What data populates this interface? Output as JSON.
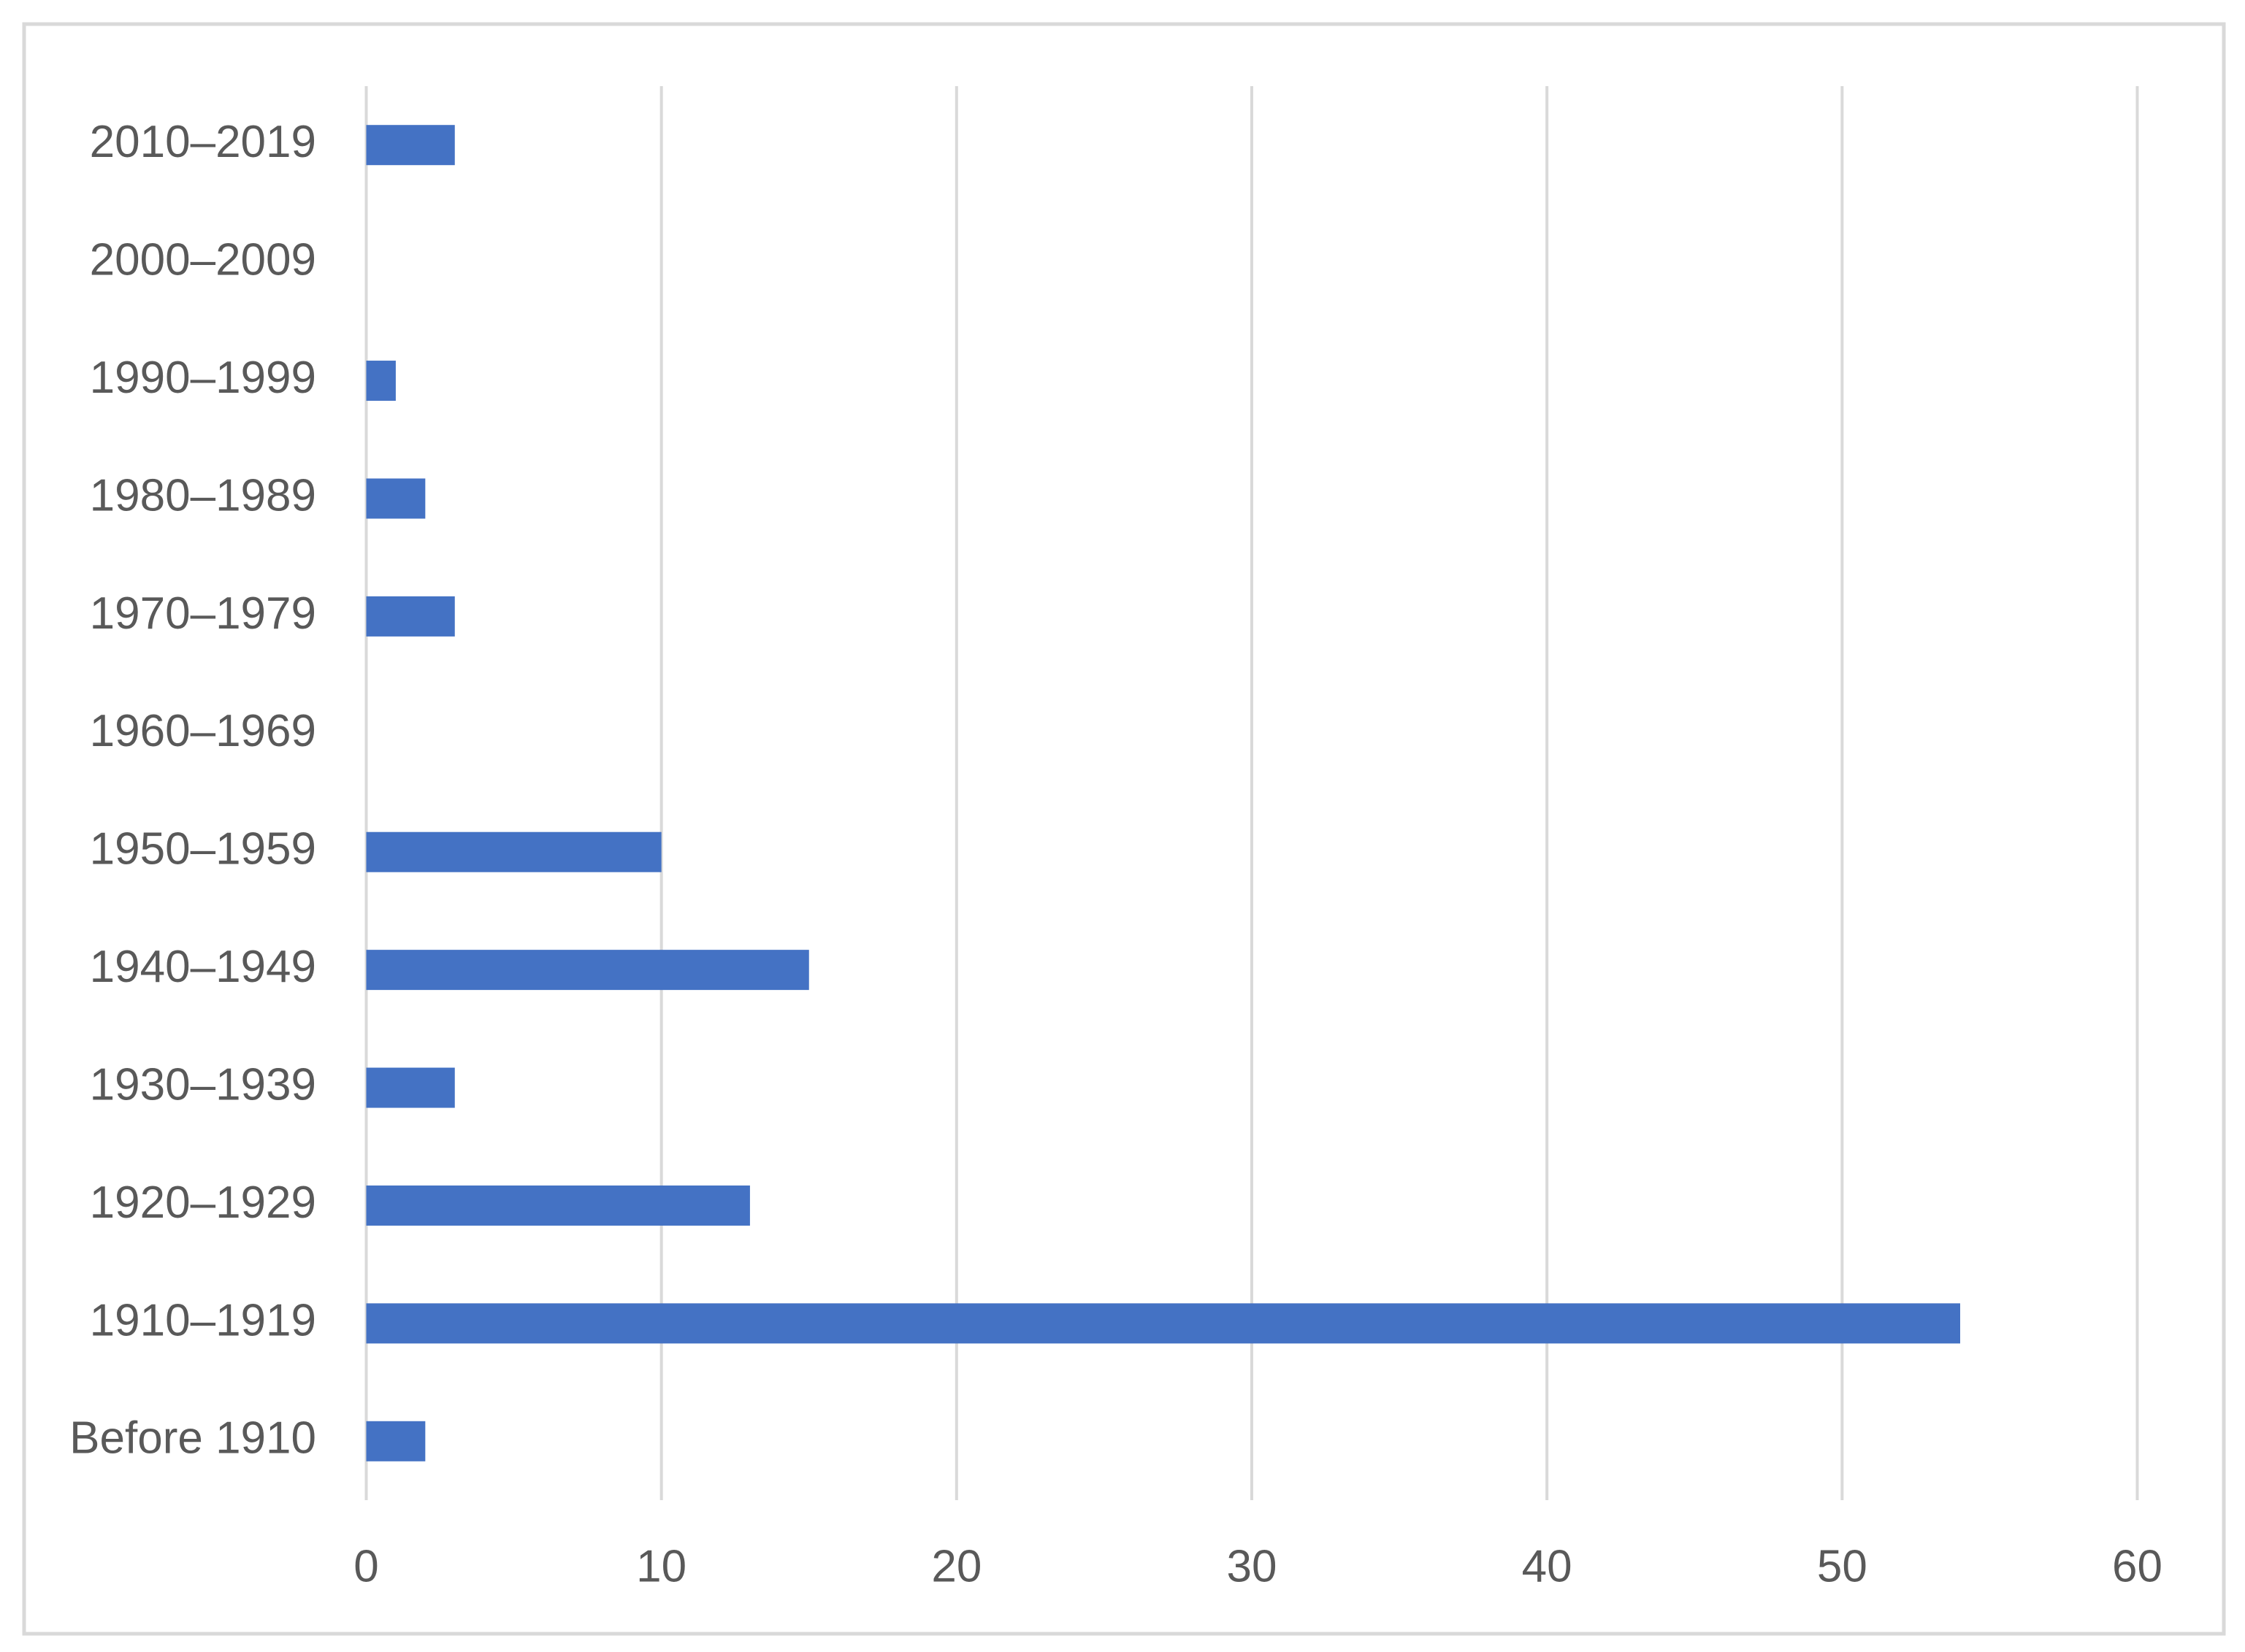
{
  "chart_data": {
    "type": "bar",
    "orientation": "horizontal",
    "categories": [
      "Before 1910",
      "1910–1919",
      "1920–1929",
      "1930–1939",
      "1940–1949",
      "1950–1959",
      "1960–1969",
      "1970–1979",
      "1980–1989",
      "1990–1999",
      "2000–2009",
      "2010–2019"
    ],
    "values": [
      2,
      54,
      13,
      3,
      15,
      10,
      0,
      3,
      2,
      1,
      0,
      3
    ],
    "color": "#4472c4",
    "xlim": [
      0,
      60
    ],
    "xticks": [
      0,
      10,
      20,
      30,
      40,
      50,
      60
    ],
    "grid": true
  }
}
